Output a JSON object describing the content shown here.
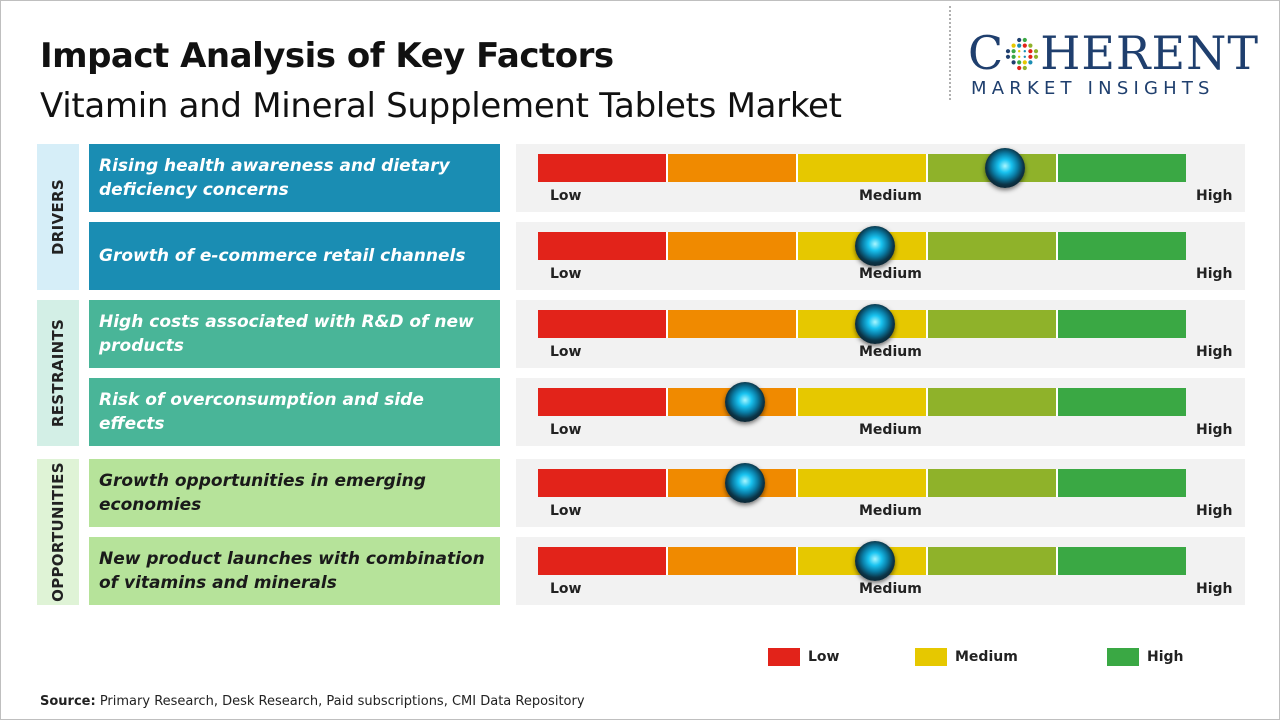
{
  "title": "Impact Analysis of Key Factors",
  "subtitle": "Vitamin and Mineral Supplement Tablets Market",
  "logo": {
    "top": "C HERENT",
    "first": "C",
    "rest": "HERENT",
    "bottom": "MARKET INSIGHTS"
  },
  "scale": {
    "low": "Low",
    "medium": "Medium",
    "high": "High"
  },
  "segment_colors": [
    "#e2231a",
    "#f08a00",
    "#e6c800",
    "#8fb22a",
    "#3aa844"
  ],
  "groups": [
    {
      "label": "DRIVERS",
      "bg": "#d6eef8",
      "factor_bg": "#1a8db3"
    },
    {
      "label": "RESTRAINTS",
      "bg": "#d3efe6",
      "factor_bg": "#49b598"
    },
    {
      "label": "OPPORTUNITIES",
      "bg": "#dff3d6",
      "factor_bg": "#b6e39a"
    }
  ],
  "legend": [
    {
      "label": "Low",
      "color": "#e2231a"
    },
    {
      "label": "Medium",
      "color": "#e6c800"
    },
    {
      "label": "High",
      "color": "#3aa844"
    }
  ],
  "source": {
    "label": "Source:",
    "text": " Primary Research, Desk Research, Paid subscriptions, CMI Data Repository"
  },
  "chart_data": {
    "type": "gauge",
    "scale": [
      "Low",
      "Medium",
      "High"
    ],
    "value_note": "impact level on a 0-5 scale across five color segments",
    "factors": [
      {
        "group": "DRIVERS",
        "label": "Rising health awareness and dietary deficiency concerns",
        "value": 3.6
      },
      {
        "group": "DRIVERS",
        "label": "Growth of e-commerce retail channels",
        "value": 2.6
      },
      {
        "group": "RESTRAINTS",
        "label": "High costs associated with R&D of new products",
        "value": 2.6
      },
      {
        "group": "RESTRAINTS",
        "label": "Risk of overconsumption and side effects",
        "value": 1.6
      },
      {
        "group": "OPPORTUNITIES",
        "label": "Growth opportunities in emerging economies",
        "value": 1.6
      },
      {
        "group": "OPPORTUNITIES",
        "label": "New product launches with combination of vitamins and minerals",
        "value": 2.6
      }
    ]
  }
}
